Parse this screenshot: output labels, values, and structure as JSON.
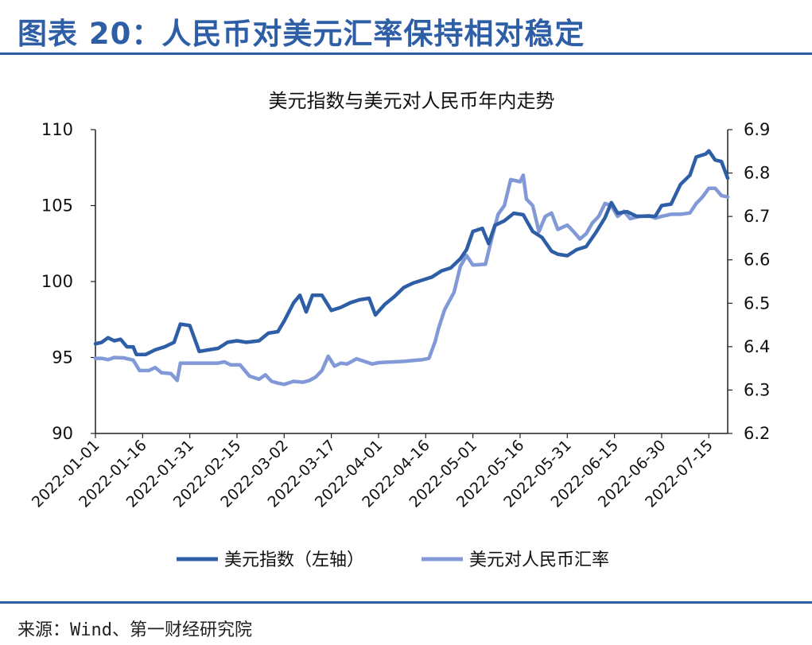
{
  "figure": {
    "title": "图表 20：人民币对美元汇率保持相对稳定",
    "source": "来源：Wind、第一财经研究院"
  },
  "chart_data": {
    "type": "line",
    "title": "美元指数与美元对人民币年内走势",
    "xlabel": "",
    "ylabel": "",
    "x_ticks": [
      "2022-01-01",
      "2022-01-16",
      "2022-01-31",
      "2022-02-15",
      "2022-03-02",
      "2022-03-17",
      "2022-04-01",
      "2022-04-16",
      "2022-05-01",
      "2022-05-16",
      "2022-05-31",
      "2022-06-15",
      "2022-06-30",
      "2022-07-15"
    ],
    "x_range": [
      "2022-01-01",
      "2022-07-21"
    ],
    "y_left": {
      "range": [
        90,
        110
      ],
      "ticks": [
        "90",
        "95",
        "100",
        "105",
        "110"
      ]
    },
    "y_right": {
      "range": [
        6.2,
        6.9
      ],
      "ticks": [
        "6.2",
        "6.3",
        "6.4",
        "6.5",
        "6.6",
        "6.7",
        "6.8",
        "6.9"
      ]
    },
    "legend_position": "bottom",
    "series": [
      {
        "name": "美元指数（左轴）",
        "axis": "left",
        "color": "#2e5fa6",
        "points": [
          [
            "2022-01-01",
            95.9
          ],
          [
            "2022-01-03",
            96.0
          ],
          [
            "2022-01-05",
            96.3
          ],
          [
            "2022-01-07",
            96.1
          ],
          [
            "2022-01-09",
            96.2
          ],
          [
            "2022-01-11",
            95.7
          ],
          [
            "2022-01-13",
            95.7
          ],
          [
            "2022-01-14",
            95.2
          ],
          [
            "2022-01-17",
            95.2
          ],
          [
            "2022-01-20",
            95.5
          ],
          [
            "2022-01-23",
            95.7
          ],
          [
            "2022-01-26",
            96.0
          ],
          [
            "2022-01-28",
            97.2
          ],
          [
            "2022-01-31",
            97.1
          ],
          [
            "2022-02-03",
            95.4
          ],
          [
            "2022-02-06",
            95.5
          ],
          [
            "2022-02-09",
            95.6
          ],
          [
            "2022-02-12",
            96.0
          ],
          [
            "2022-02-15",
            96.1
          ],
          [
            "2022-02-18",
            96.0
          ],
          [
            "2022-02-22",
            96.1
          ],
          [
            "2022-02-25",
            96.6
          ],
          [
            "2022-02-28",
            96.7
          ],
          [
            "2022-03-02",
            97.4
          ],
          [
            "2022-03-05",
            98.6
          ],
          [
            "2022-03-07",
            99.1
          ],
          [
            "2022-03-09",
            98.0
          ],
          [
            "2022-03-11",
            99.1
          ],
          [
            "2022-03-14",
            99.1
          ],
          [
            "2022-03-17",
            98.1
          ],
          [
            "2022-03-20",
            98.3
          ],
          [
            "2022-03-23",
            98.6
          ],
          [
            "2022-03-26",
            98.8
          ],
          [
            "2022-03-29",
            98.9
          ],
          [
            "2022-03-31",
            97.8
          ],
          [
            "2022-04-03",
            98.5
          ],
          [
            "2022-04-06",
            99.0
          ],
          [
            "2022-04-09",
            99.6
          ],
          [
            "2022-04-12",
            99.9
          ],
          [
            "2022-04-15",
            100.1
          ],
          [
            "2022-04-18",
            100.3
          ],
          [
            "2022-04-21",
            100.7
          ],
          [
            "2022-04-24",
            100.9
          ],
          [
            "2022-04-27",
            101.5
          ],
          [
            "2022-04-29",
            102.1
          ],
          [
            "2022-05-01",
            103.3
          ],
          [
            "2022-05-04",
            103.5
          ],
          [
            "2022-05-06",
            102.5
          ],
          [
            "2022-05-08",
            103.7
          ],
          [
            "2022-05-11",
            104.0
          ],
          [
            "2022-05-14",
            104.5
          ],
          [
            "2022-05-17",
            104.4
          ],
          [
            "2022-05-20",
            103.3
          ],
          [
            "2022-05-23",
            102.9
          ],
          [
            "2022-05-26",
            102.0
          ],
          [
            "2022-05-28",
            101.8
          ],
          [
            "2022-05-31",
            101.7
          ],
          [
            "2022-06-03",
            102.1
          ],
          [
            "2022-06-06",
            102.3
          ],
          [
            "2022-06-09",
            103.2
          ],
          [
            "2022-06-12",
            104.2
          ],
          [
            "2022-06-14",
            105.2
          ],
          [
            "2022-06-16",
            104.5
          ],
          [
            "2022-06-19",
            104.6
          ],
          [
            "2022-06-22",
            104.3
          ],
          [
            "2022-06-25",
            104.3
          ],
          [
            "2022-06-28",
            104.3
          ],
          [
            "2022-06-30",
            105.0
          ],
          [
            "2022-07-03",
            105.1
          ],
          [
            "2022-07-06",
            106.4
          ],
          [
            "2022-07-09",
            107.0
          ],
          [
            "2022-07-11",
            108.2
          ],
          [
            "2022-07-14",
            108.4
          ],
          [
            "2022-07-15",
            108.6
          ],
          [
            "2022-07-17",
            108.0
          ],
          [
            "2022-07-19",
            107.9
          ],
          [
            "2022-07-21",
            106.8
          ]
        ]
      },
      {
        "name": "美元对人民币汇率",
        "axis": "right",
        "color": "#8199d6",
        "points": [
          [
            "2022-01-01",
            6.373
          ],
          [
            "2022-01-03",
            6.373
          ],
          [
            "2022-01-05",
            6.37
          ],
          [
            "2022-01-07",
            6.375
          ],
          [
            "2022-01-10",
            6.374
          ],
          [
            "2022-01-13",
            6.369
          ],
          [
            "2022-01-15",
            6.345
          ],
          [
            "2022-01-18",
            6.345
          ],
          [
            "2022-01-20",
            6.352
          ],
          [
            "2022-01-22",
            6.34
          ],
          [
            "2022-01-25",
            6.338
          ],
          [
            "2022-01-27",
            6.322
          ],
          [
            "2022-01-28",
            6.362
          ],
          [
            "2022-01-31",
            6.362
          ],
          [
            "2022-02-03",
            6.362
          ],
          [
            "2022-02-06",
            6.362
          ],
          [
            "2022-02-09",
            6.362
          ],
          [
            "2022-02-11",
            6.365
          ],
          [
            "2022-02-13",
            6.358
          ],
          [
            "2022-02-16",
            6.358
          ],
          [
            "2022-02-19",
            6.332
          ],
          [
            "2022-02-22",
            6.325
          ],
          [
            "2022-02-24",
            6.335
          ],
          [
            "2022-02-26",
            6.32
          ],
          [
            "2022-02-28",
            6.316
          ],
          [
            "2022-03-02",
            6.313
          ],
          [
            "2022-03-05",
            6.32
          ],
          [
            "2022-03-08",
            6.318
          ],
          [
            "2022-03-10",
            6.322
          ],
          [
            "2022-03-12",
            6.33
          ],
          [
            "2022-03-14",
            6.345
          ],
          [
            "2022-03-16",
            6.378
          ],
          [
            "2022-03-18",
            6.355
          ],
          [
            "2022-03-20",
            6.362
          ],
          [
            "2022-03-22",
            6.36
          ],
          [
            "2022-03-25",
            6.372
          ],
          [
            "2022-03-28",
            6.365
          ],
          [
            "2022-03-30",
            6.36
          ],
          [
            "2022-04-01",
            6.363
          ],
          [
            "2022-04-03",
            6.364
          ],
          [
            "2022-04-06",
            6.365
          ],
          [
            "2022-04-09",
            6.366
          ],
          [
            "2022-04-12",
            6.368
          ],
          [
            "2022-04-15",
            6.37
          ],
          [
            "2022-04-17",
            6.373
          ],
          [
            "2022-04-19",
            6.412
          ],
          [
            "2022-04-20",
            6.44
          ],
          [
            "2022-04-22",
            6.485
          ],
          [
            "2022-04-25",
            6.525
          ],
          [
            "2022-04-27",
            6.585
          ],
          [
            "2022-04-29",
            6.61
          ],
          [
            "2022-05-01",
            6.588
          ],
          [
            "2022-05-05",
            6.59
          ],
          [
            "2022-05-07",
            6.65
          ],
          [
            "2022-05-09",
            6.705
          ],
          [
            "2022-05-11",
            6.725
          ],
          [
            "2022-05-13",
            6.785
          ],
          [
            "2022-05-16",
            6.78
          ],
          [
            "2022-05-17",
            6.795
          ],
          [
            "2022-05-18",
            6.74
          ],
          [
            "2022-05-20",
            6.725
          ],
          [
            "2022-05-22",
            6.665
          ],
          [
            "2022-05-24",
            6.7
          ],
          [
            "2022-05-26",
            6.708
          ],
          [
            "2022-05-28",
            6.67
          ],
          [
            "2022-05-31",
            6.68
          ],
          [
            "2022-06-02",
            6.665
          ],
          [
            "2022-06-04",
            6.648
          ],
          [
            "2022-06-06",
            6.66
          ],
          [
            "2022-06-08",
            6.685
          ],
          [
            "2022-06-10",
            6.7
          ],
          [
            "2022-06-12",
            6.73
          ],
          [
            "2022-06-14",
            6.725
          ],
          [
            "2022-06-16",
            6.7
          ],
          [
            "2022-06-18",
            6.712
          ],
          [
            "2022-06-20",
            6.695
          ],
          [
            "2022-06-23",
            6.7
          ],
          [
            "2022-06-26",
            6.702
          ],
          [
            "2022-06-28",
            6.696
          ],
          [
            "2022-06-30",
            6.7
          ],
          [
            "2022-07-03",
            6.705
          ],
          [
            "2022-07-06",
            6.705
          ],
          [
            "2022-07-09",
            6.708
          ],
          [
            "2022-07-11",
            6.73
          ],
          [
            "2022-07-13",
            6.745
          ],
          [
            "2022-07-15",
            6.765
          ],
          [
            "2022-07-17",
            6.765
          ],
          [
            "2022-07-19",
            6.748
          ],
          [
            "2022-07-21",
            6.745
          ]
        ]
      }
    ]
  }
}
